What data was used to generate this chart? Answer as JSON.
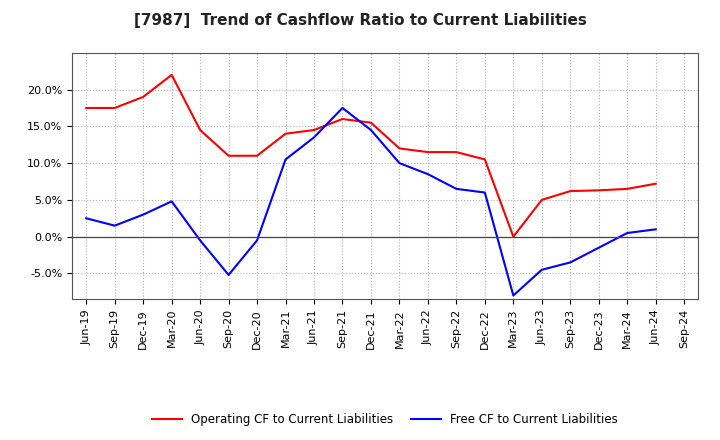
{
  "title": "[7987]  Trend of Cashflow Ratio to Current Liabilities",
  "x_labels": [
    "Jun-19",
    "Sep-19",
    "Dec-19",
    "Mar-20",
    "Jun-20",
    "Sep-20",
    "Dec-20",
    "Mar-21",
    "Jun-21",
    "Sep-21",
    "Dec-21",
    "Mar-22",
    "Jun-22",
    "Sep-22",
    "Dec-22",
    "Mar-23",
    "Jun-23",
    "Sep-23",
    "Dec-23",
    "Mar-24",
    "Jun-24",
    "Sep-24"
  ],
  "operating_cf": [
    17.5,
    17.5,
    19.0,
    22.0,
    14.5,
    11.0,
    11.0,
    14.0,
    14.5,
    16.0,
    15.5,
    12.0,
    11.5,
    11.5,
    10.5,
    0.0,
    5.0,
    6.2,
    6.3,
    6.5,
    7.2,
    null
  ],
  "free_cf": [
    2.5,
    1.5,
    3.0,
    4.8,
    -0.5,
    -5.2,
    -0.5,
    10.5,
    13.5,
    17.5,
    14.5,
    10.0,
    8.5,
    6.5,
    6.0,
    -8.0,
    -4.5,
    -3.5,
    -1.5,
    0.5,
    1.0,
    null
  ],
  "operating_color": "#ff0000",
  "free_color": "#0000ff",
  "ylim": [
    -8.5,
    25.0
  ],
  "yticks": [
    -5.0,
    0.0,
    5.0,
    10.0,
    15.0,
    20.0
  ],
  "background_color": "#ffffff",
  "grid_color": "#b0b0b0",
  "legend_op": "Operating CF to Current Liabilities",
  "legend_free": "Free CF to Current Liabilities",
  "title_fontsize": 11,
  "tick_fontsize": 8
}
